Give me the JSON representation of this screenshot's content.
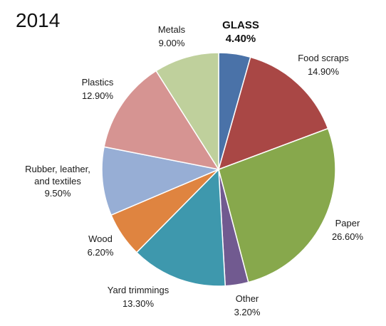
{
  "chart_data": {
    "type": "pie",
    "title": "2014",
    "slices": [
      {
        "name": "GLASS",
        "value": 4.4,
        "label": "4.40%",
        "color": "#4a72a8",
        "bold": true
      },
      {
        "name": "Food scraps",
        "value": 14.9,
        "label": "14.90%",
        "color": "#a94745"
      },
      {
        "name": "Paper",
        "value": 26.6,
        "label": "26.60%",
        "color": "#87a84c"
      },
      {
        "name": "Other",
        "value": 3.2,
        "label": "3.20%",
        "color": "#715a90"
      },
      {
        "name": "Yard trimmings",
        "value": 13.3,
        "label": "13.30%",
        "color": "#3e98ad"
      },
      {
        "name": "Wood",
        "value": 6.2,
        "label": "6.20%",
        "color": "#df8440"
      },
      {
        "name": "Rubber, leather, and textiles",
        "value": 9.5,
        "label": "9.50%",
        "color": "#97aed5"
      },
      {
        "name": "Plastics",
        "value": 12.9,
        "label": "12.90%",
        "color": "#d69492"
      },
      {
        "name": "Metals",
        "value": 9.0,
        "label": "9.00%",
        "color": "#bfd09c"
      }
    ]
  }
}
